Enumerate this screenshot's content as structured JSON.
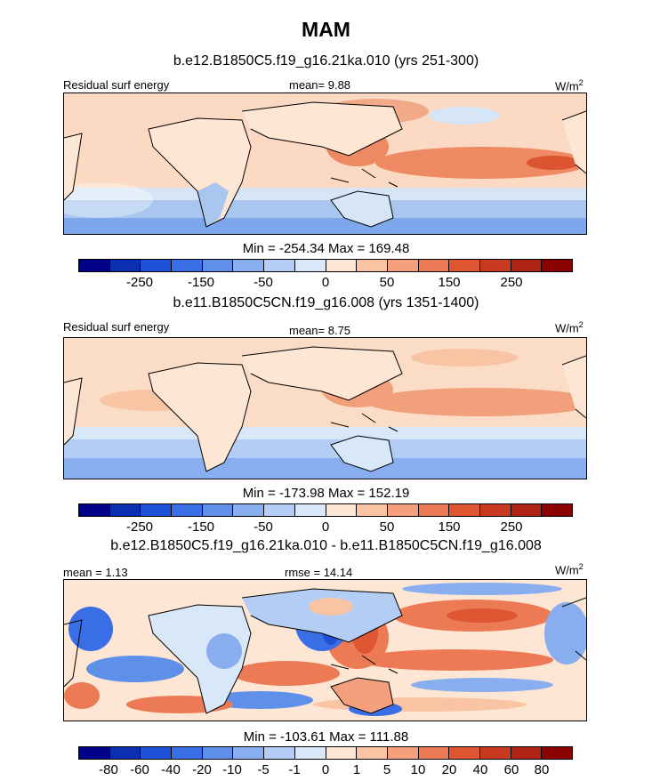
{
  "figure": {
    "title": "MAM",
    "units": "W/m",
    "units_exp": "2"
  },
  "chart_data": [
    {
      "type": "heatmap",
      "title": "b.e12.B1850C5.f19_g16.21ka.010 (yrs 251-300)",
      "left_label": "Residual surf energy",
      "center_label": "mean=   9.88",
      "minmax": "Min = -254.34 Max = 169.48",
      "levels": [
        -300,
        -250,
        -200,
        -150,
        -100,
        -50,
        -25,
        0,
        25,
        50,
        100,
        150,
        200,
        250,
        300
      ],
      "colorbar_ticks": [
        "-250",
        "-150",
        "-50",
        "0",
        "50",
        "150",
        "250"
      ],
      "colorbar_colors": [
        "#00008b",
        "#0b2fb0",
        "#1f50d8",
        "#3a6ee6",
        "#5e8fe9",
        "#88aeef",
        "#b4cdf4",
        "#d8e8f8",
        "#fde6d3",
        "#f9c4a3",
        "#f4a07c",
        "#ec7a55",
        "#de5632",
        "#c83a1f",
        "#ad2414",
        "#8b0000"
      ],
      "mean": 9.88,
      "min": -254.34,
      "max": 169.48
    },
    {
      "type": "heatmap",
      "title": "b.e11.B1850C5CN.f19_g16.008 (yrs 1351-1400)",
      "left_label": "Residual surf energy",
      "center_label": "mean=   8.75",
      "minmax": "Min = -173.98 Max = 152.19",
      "colorbar_ticks": [
        "-250",
        "-150",
        "-50",
        "0",
        "50",
        "150",
        "250"
      ],
      "mean": 8.75,
      "min": -173.98,
      "max": 152.19
    },
    {
      "type": "heatmap",
      "title": "b.e12.B1850C5.f19_g16.21ka.010 - b.e11.B1850C5CN.f19_g16.008",
      "left_label": "mean =   1.13",
      "center_label": "rmse =  14.14",
      "minmax": "Min = -103.61 Max = 111.88",
      "levels": [
        -100,
        -80,
        -60,
        -40,
        -20,
        -10,
        -5,
        -1,
        0,
        1,
        5,
        10,
        20,
        40,
        60,
        80,
        100
      ],
      "colorbar_ticks": [
        "-80",
        "-60",
        "-40",
        "-20",
        "-10",
        "-5",
        "-1",
        "0",
        "1",
        "5",
        "10",
        "20",
        "40",
        "60",
        "80"
      ],
      "mean": 1.13,
      "rmse": 14.14,
      "min": -103.61,
      "max": 111.88
    }
  ]
}
